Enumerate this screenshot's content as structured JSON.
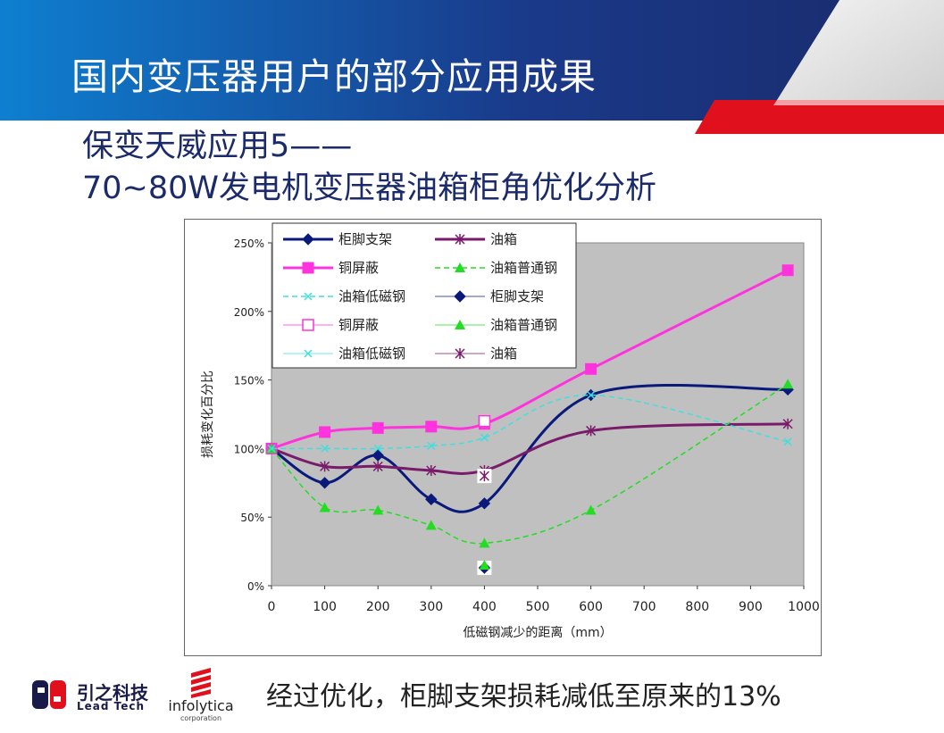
{
  "slide": {
    "title": "国内变压器用户的部分应用成果",
    "subtitle_line1": "保变天威应用5——",
    "subtitle_line2": "70~80W发电机变压器油箱柜角优化分析",
    "conclusion": "经过优化，柜脚支架损耗减低至原来的13%"
  },
  "logos": {
    "lead_cn": "引之科技",
    "lead_en": "Lead Tech",
    "infolytica_name": "infolytica",
    "infolytica_sub": "corporation"
  },
  "colors": {
    "banner_blue": "#1a3a8a",
    "banner_light": "#0e7fd0",
    "banner_red": "#e0101c",
    "plot_bg": "#c0c0c0"
  },
  "chart_data": {
    "type": "line",
    "xlabel": "低磁钢减少的距离（mm）",
    "ylabel": "损耗变化百分比",
    "xlim": [
      0,
      1000
    ],
    "ylim": [
      0,
      250
    ],
    "xticks": [
      "0",
      "100",
      "200",
      "300",
      "400",
      "500",
      "600",
      "700",
      "800",
      "900",
      "1000"
    ],
    "yticks": [
      "0%",
      "50%",
      "100%",
      "150%",
      "200%",
      "250%"
    ],
    "series": [
      {
        "name": "柜脚支架",
        "color": "#0a1a7a",
        "style": "solid",
        "marker": "diamond",
        "x": [
          0,
          100,
          200,
          300,
          400,
          600,
          970
        ],
        "y": [
          100,
          75,
          95,
          63,
          60,
          139,
          143
        ]
      },
      {
        "name": "油箱",
        "color": "#7a1a6a",
        "style": "solid",
        "marker": "star",
        "x": [
          0,
          100,
          200,
          300,
          400,
          600,
          970
        ],
        "y": [
          100,
          87,
          87,
          84,
          84,
          113,
          118
        ]
      },
      {
        "name": "铜屏蔽",
        "color": "#ff33dd",
        "style": "solid",
        "marker": "square",
        "x": [
          0,
          100,
          200,
          300,
          400,
          600,
          970
        ],
        "y": [
          100,
          112,
          115,
          116,
          118,
          158,
          230
        ]
      },
      {
        "name": "油箱普通钢",
        "color": "#22dd22",
        "style": "dashed",
        "marker": "triangle",
        "x": [
          0,
          100,
          200,
          300,
          400,
          600,
          970
        ],
        "y": [
          100,
          57,
          55,
          44,
          31,
          55,
          147
        ]
      },
      {
        "name": "油箱低磁钢",
        "color": "#44dddd",
        "style": "dashed",
        "marker": "x",
        "x": [
          0,
          100,
          200,
          300,
          400,
          600,
          970
        ],
        "y": [
          100,
          100,
          100,
          102,
          108,
          139,
          105
        ]
      }
    ],
    "optimized_points": [
      {
        "name": "柜脚支架",
        "x": 400,
        "y": 13,
        "marker": "diamond"
      },
      {
        "name": "铜屏蔽",
        "x": 400,
        "y": 120,
        "marker": "square-open"
      },
      {
        "name": "油箱普通钢",
        "x": 400,
        "y": 15,
        "marker": "triangle"
      },
      {
        "name": "油箱低磁钢",
        "x": 400,
        "y": 108,
        "marker": "x"
      },
      {
        "name": "油箱",
        "x": 400,
        "y": 80,
        "marker": "star"
      }
    ],
    "legend": [
      {
        "label": "柜脚支架",
        "color": "#0a1a7a",
        "line": "solid-thick",
        "marker": "diamond"
      },
      {
        "label": "油箱",
        "color": "#7a1a6a",
        "line": "solid-thick",
        "marker": "star"
      },
      {
        "label": "铜屏蔽",
        "color": "#ff33dd",
        "line": "solid-thick",
        "marker": "square"
      },
      {
        "label": "油箱普通钢",
        "color": "#22dd22",
        "line": "dashed",
        "marker": "triangle"
      },
      {
        "label": "油箱低磁钢",
        "color": "#44dddd",
        "line": "dashed",
        "marker": "x"
      },
      {
        "label": "柜脚支架",
        "color": "#0a1a7a",
        "line": "thin",
        "marker": "diamond"
      },
      {
        "label": "铜屏蔽",
        "color": "#ff33dd",
        "line": "thin",
        "marker": "square-open"
      },
      {
        "label": "油箱普通钢",
        "color": "#22dd22",
        "line": "thin",
        "marker": "triangle"
      },
      {
        "label": "油箱低磁钢",
        "color": "#44dddd",
        "line": "thin",
        "marker": "x"
      },
      {
        "label": "油箱",
        "color": "#7a1a6a",
        "line": "thin",
        "marker": "star"
      }
    ]
  }
}
